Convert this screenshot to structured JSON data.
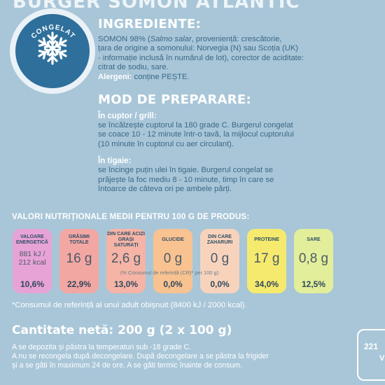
{
  "top_title": "BURGER SOMON ATLANTIC",
  "badge": {
    "label": "CONGELAT",
    "icon": "snowflake-icon"
  },
  "ingredients": {
    "heading": "INGREDIENTE:",
    "line1_prefix": "SOMON 98% (",
    "latin": "Salmo salar",
    "line1_suffix": ", proveniență: crescătorie,",
    "line2": "țara de origine a somonului: Norvegia (N) sau Scoția (UK)",
    "line3": "- informație inclusă în numărul de lot), corector de aciditate:",
    "line4": "citrat de sodiu, sare.",
    "allergen_label": "Alergeni:",
    "allergen_value": " conține PEȘTE."
  },
  "preparation": {
    "heading": "MOD DE PREPARARE:",
    "oven_label": "În cuptor / grill:",
    "oven_line1": "se încălzește cuptorul la 180 grade C. Burgerul congelat",
    "oven_line2": "se coace 10 - 12 minute într-o tavă, la mijlocul cuptorului",
    "oven_line3": "(10 minute în cuptorul cu aer circulant).",
    "pan_label": "În tigaie:",
    "pan_line1": "se încinge puțin ulei în tigaie. Burgerul congelat se",
    "pan_line2": "prăjește la foc mediu 8 - 10 minute, timp în care se",
    "pan_line3": "întoarce de câteva ori pe ambele părți."
  },
  "nutrition": {
    "heading": "VALORI NUTRIȚIONALE MEDII PENTRU 100 G DE PRODUS:",
    "reference_note": "(% Consumul de referință (CR)* per 100 g):",
    "items": [
      {
        "label": "VALOARE ENERGETICĂ",
        "value": "881 kJ / 212 kcal",
        "percent": "10,6%",
        "color": "#e7a3d6"
      },
      {
        "label": "GRĂSIMI TOTALE",
        "value": "16 g",
        "percent": "22,9%",
        "color": "#f3a7a3"
      },
      {
        "label": "DIN CARE ACIZI GRAȘI SATURAȚI",
        "value": "2,6 g",
        "percent": "13,0%",
        "color": "#f5b4a6"
      },
      {
        "label": "GLUCIDE",
        "value": "0 g",
        "percent": "0,0%",
        "color": "#f8c291"
      },
      {
        "label": "DIN CARE ZAHARURI",
        "value": "0 g",
        "percent": "0,0%",
        "color": "#f8d3bc"
      },
      {
        "label": "PROTEINE",
        "value": "17 g",
        "percent": "34,0%",
        "color": "#f6ea6e"
      },
      {
        "label": "SARE",
        "value": "0,8 g",
        "percent": "12,5%",
        "color": "#e3ee9b"
      }
    ]
  },
  "footnote": "*Consumul de referință al unui adult obișnuit (8400 kJ / 2000 kcal).",
  "quantity": "Cantitate netă: 200 g (2 x 100 g)",
  "storage": {
    "line1": "A se depozita și păstra la temperaturi sub -18 grade C.",
    "line2": "A nu se recongela după decongelare. După decongelare a se păstra la frigider",
    "line3": "și a se găti în maximum 24 de ore. A se găti termic înainte de consum."
  },
  "corner": {
    "text": "221",
    "sub": "V"
  }
}
